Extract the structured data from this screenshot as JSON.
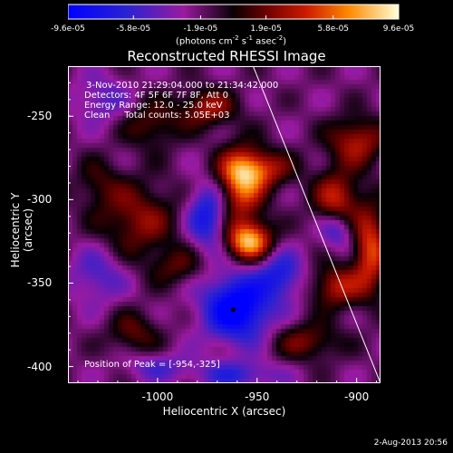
{
  "chart_data": {
    "type": "heatmap",
    "title": "Reconstructed RHESSI Image",
    "xlabel": "Heliocentric X (arcsec)",
    "ylabel": "Heliocentric Y (arcsec)",
    "xlim": [
      -1045,
      -888
    ],
    "ylim": [
      -410,
      -220
    ],
    "xticks": [
      {
        "value": -1000,
        "label": "-1000"
      },
      {
        "value": -950,
        "label": "-950"
      },
      {
        "value": -900,
        "label": "-900"
      }
    ],
    "yticks": [
      {
        "value": -250,
        "label": "-250"
      },
      {
        "value": -300,
        "label": "-300"
      },
      {
        "value": -350,
        "label": "-350"
      },
      {
        "value": -400,
        "label": "-400"
      }
    ],
    "colorbar": {
      "range": [
        -9.6e-05,
        9.6e-05
      ],
      "ticks": [
        {
          "value": -9.6e-05,
          "label": "-9.6e-05"
        },
        {
          "value": -5.8e-05,
          "label": "-5.8e-05"
        },
        {
          "value": -1.9e-05,
          "label": "-1.9e-05"
        },
        {
          "value": 1.9e-05,
          "label": "1.9e-05"
        },
        {
          "value": 5.8e-05,
          "label": "5.8e-05"
        },
        {
          "value": 9.6e-05,
          "label": "9.6e-05"
        }
      ],
      "unit_text": "(photons cm",
      "unit_exp1": "-2",
      "unit_mid": " s",
      "unit_exp2": "-1",
      "unit_mid2": " asec",
      "unit_exp3": "-2",
      "unit_end": ")"
    },
    "info_lines": [
      "3-Nov-2010 21:29:04.000 to 21:34:42.000",
      "Detectors: 4F 5F 6F 7F 8F, Att 0",
      "Energy Range: 12.0 - 25.0 keV",
      "Clean     Total counts: 5.05E+03"
    ],
    "peak_label": "Position of Peak = [-954,-325]",
    "peak": [
      -954,
      -325
    ],
    "marker": [
      -962,
      -366
    ],
    "limb_line": [
      [
        -952,
        -220
      ],
      [
        -888,
        -410
      ]
    ],
    "sources": [
      {
        "x": -954,
        "y": -325,
        "amp": 9.6e-05,
        "sx": 8,
        "sy": 8
      },
      {
        "x": -958,
        "y": -292,
        "amp": 7e-05,
        "sx": 8,
        "sy": 16
      },
      {
        "x": -950,
        "y": -282,
        "amp": 6e-05,
        "sx": 12,
        "sy": 8
      },
      {
        "x": -975,
        "y": -245,
        "amp": 5e-05,
        "sx": 10,
        "sy": 8
      },
      {
        "x": -1003,
        "y": -255,
        "amp": 3.5e-05,
        "sx": 10,
        "sy": 10
      },
      {
        "x": -1010,
        "y": -312,
        "amp": 4.5e-05,
        "sx": 14,
        "sy": 16
      },
      {
        "x": -1030,
        "y": -290,
        "amp": 2.5e-05,
        "sx": 8,
        "sy": 10
      },
      {
        "x": -990,
        "y": -340,
        "amp": 3e-05,
        "sx": 10,
        "sy": 8
      },
      {
        "x": -1012,
        "y": -380,
        "amp": 3.5e-05,
        "sx": 9,
        "sy": 9
      },
      {
        "x": -910,
        "y": -300,
        "amp": 6e-05,
        "sx": 8,
        "sy": 12
      },
      {
        "x": -900,
        "y": -265,
        "amp": 5.5e-05,
        "sx": 10,
        "sy": 10
      },
      {
        "x": -893,
        "y": -330,
        "amp": 7e-05,
        "sx": 6,
        "sy": 18
      },
      {
        "x": -910,
        "y": -352,
        "amp": 5.5e-05,
        "sx": 9,
        "sy": 9
      },
      {
        "x": -925,
        "y": -385,
        "amp": 4e-05,
        "sx": 12,
        "sy": 8
      },
      {
        "x": -960,
        "y": -365,
        "amp": -9e-05,
        "sx": 12,
        "sy": 14
      },
      {
        "x": -975,
        "y": -310,
        "amp": -6e-05,
        "sx": 7,
        "sy": 14
      },
      {
        "x": -938,
        "y": -345,
        "amp": -5e-05,
        "sx": 8,
        "sy": 10
      },
      {
        "x": -910,
        "y": -318,
        "amp": -4.5e-05,
        "sx": 6,
        "sy": 8
      },
      {
        "x": -1030,
        "y": -345,
        "amp": -3.5e-05,
        "sx": 10,
        "sy": 12
      },
      {
        "x": -1028,
        "y": -240,
        "amp": -3e-05,
        "sx": 10,
        "sy": 10
      },
      {
        "x": -960,
        "y": -405,
        "amp": -4e-05,
        "sx": 15,
        "sy": 6
      },
      {
        "x": -1000,
        "y": -400,
        "amp": -3e-05,
        "sx": 12,
        "sy": 6
      }
    ]
  },
  "footer": {
    "date": "2-Aug-2013 20:56"
  }
}
